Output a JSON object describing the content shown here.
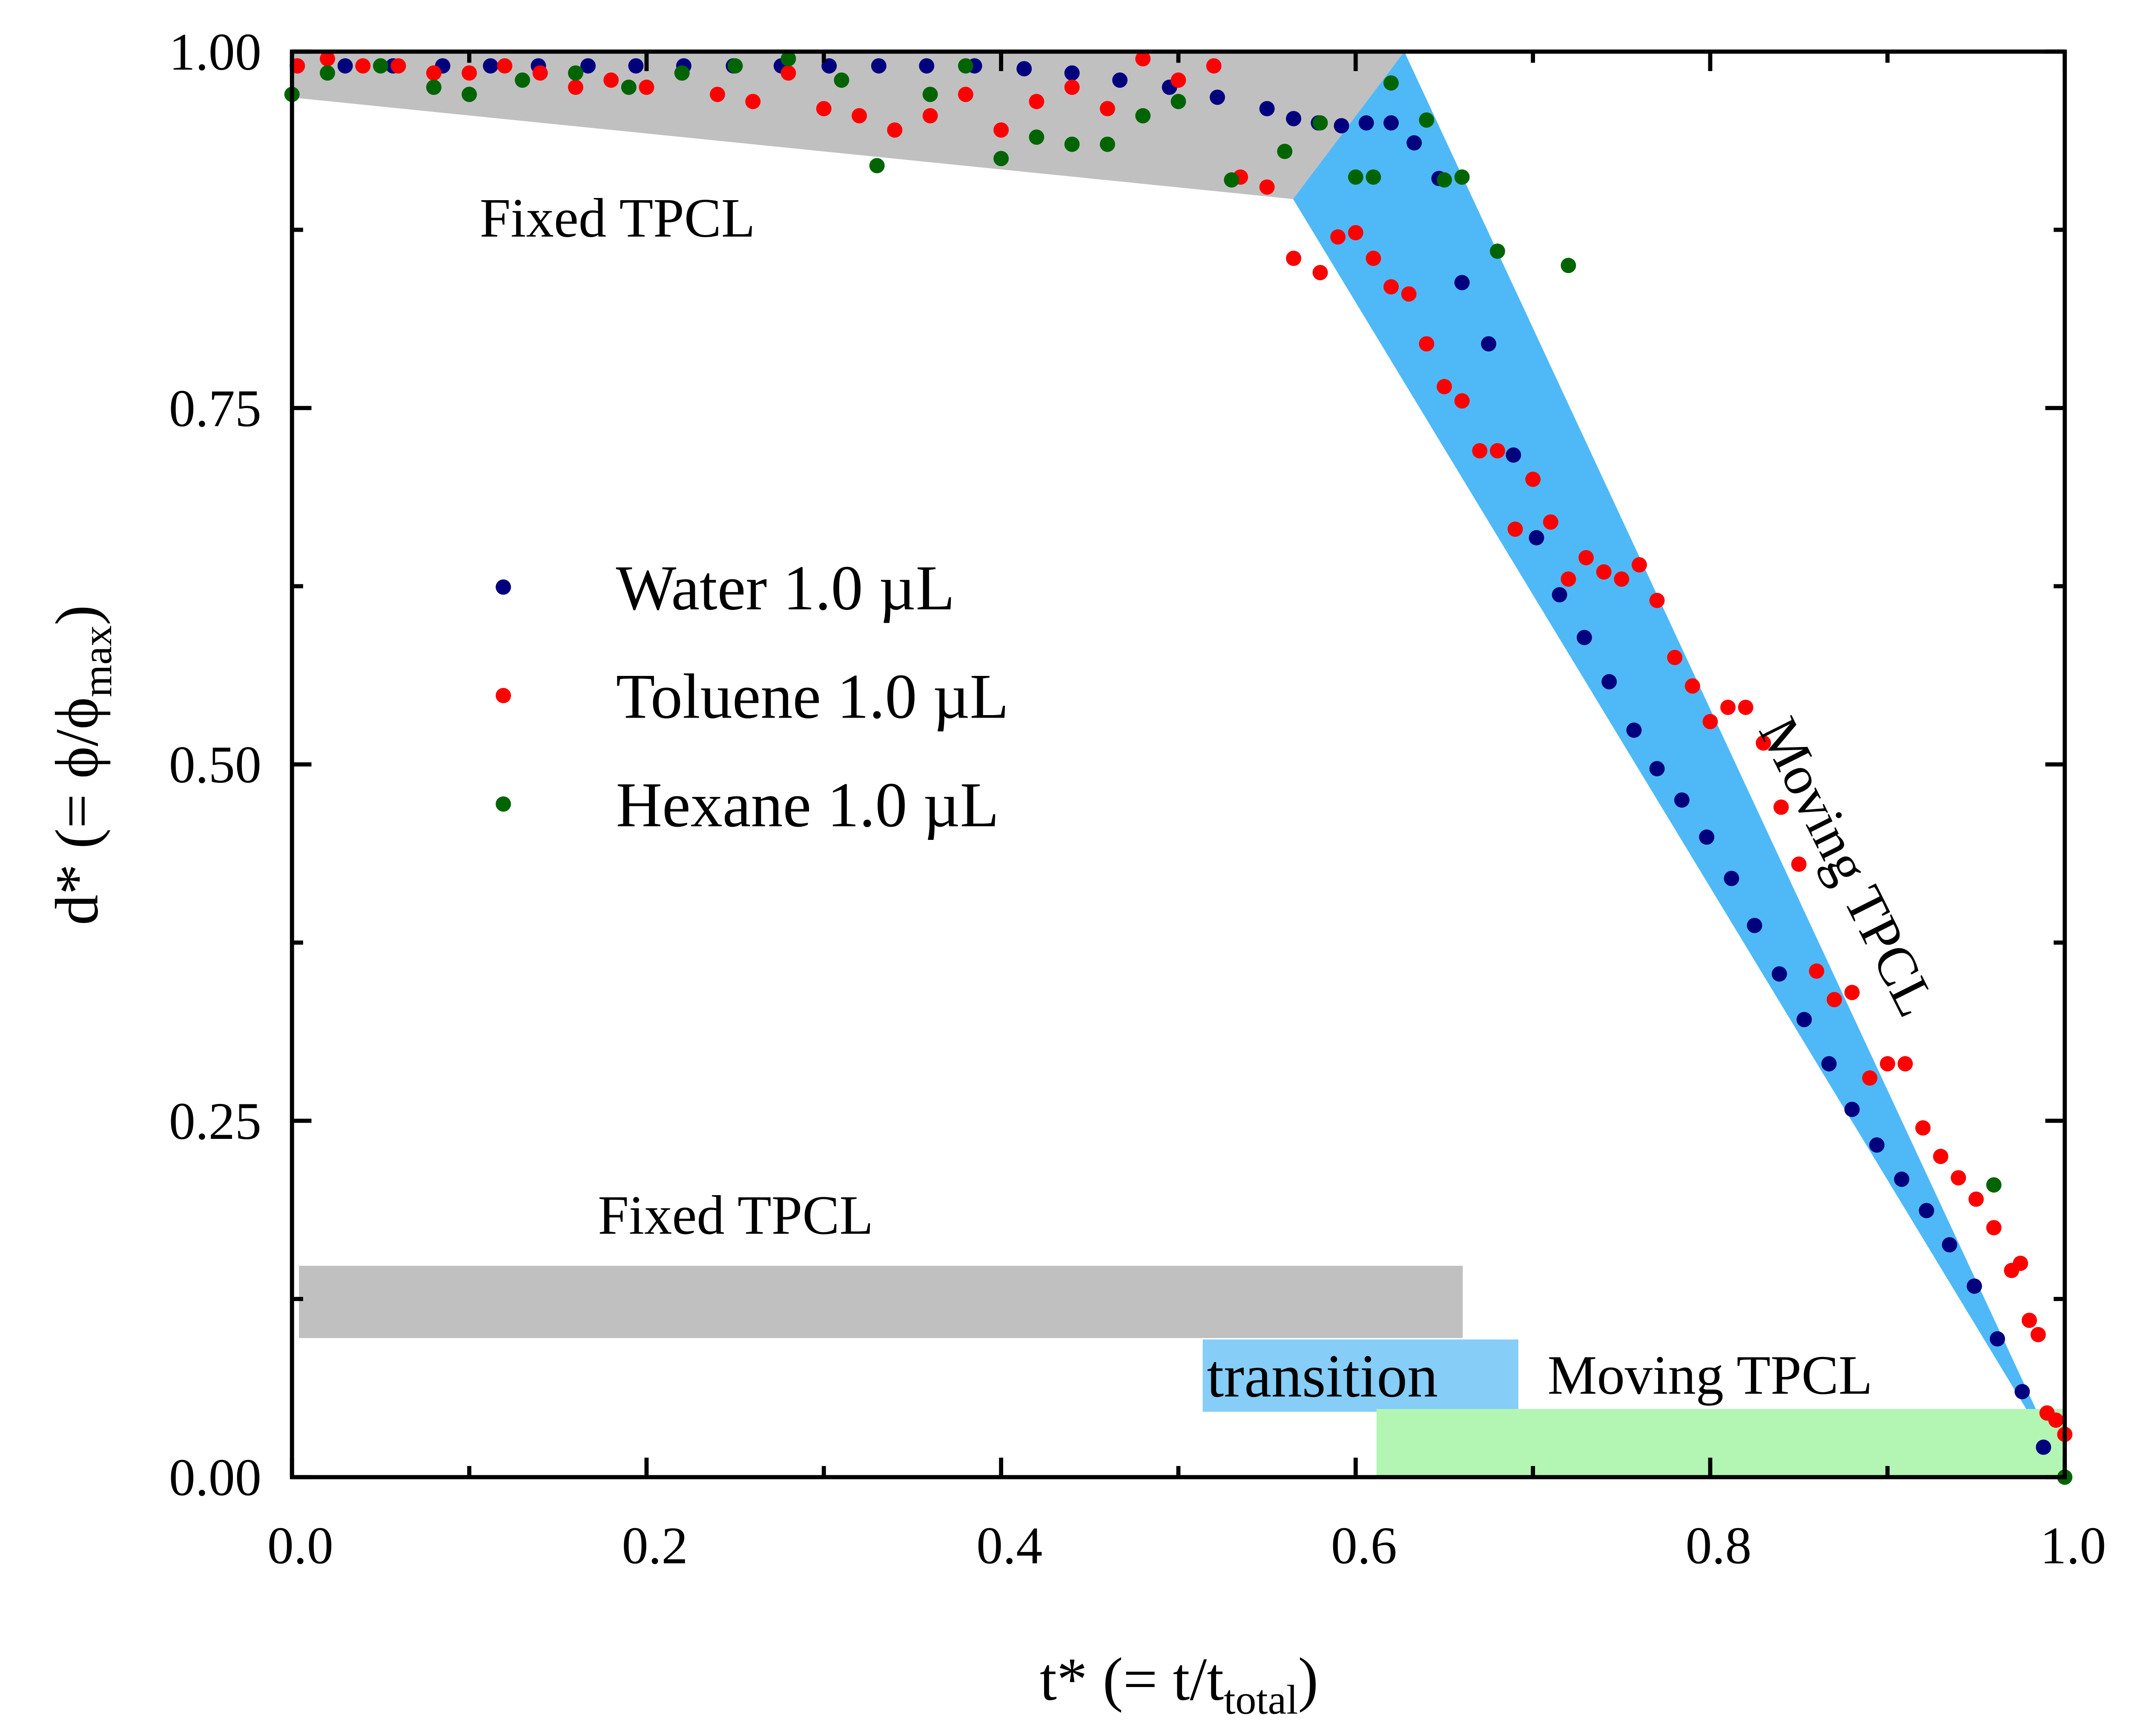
{
  "chart_data": {
    "type": "scatter",
    "x_label": {
      "main": "t* (= t/t",
      "sub": "total",
      "end": ")"
    },
    "y_label": {
      "main": "d* (= ϕ/ϕ",
      "sub": "max",
      "end": ")"
    },
    "xlim": [
      0,
      1
    ],
    "ylim": [
      0,
      1
    ],
    "xticks": [
      {
        "value": 0,
        "label": "0.0"
      },
      0.2,
      0.4,
      0.6,
      0.8,
      {
        "value": 1,
        "label": "1.0"
      }
    ],
    "xminor_ticks": [
      0.1,
      0.3,
      0.5,
      0.7,
      0.9
    ],
    "yticks": [
      {
        "value": 0,
        "label": "0.00"
      },
      0.25,
      {
        "value": 0.5,
        "label": "0.50"
      },
      0.75,
      {
        "value": 1,
        "label": "1.00"
      }
    ],
    "yminor_ticks": [
      0.125,
      0.375,
      0.625,
      0.875
    ],
    "annotations": [
      "Fixed TPCL",
      "Moving TPCL",
      "Fixed TPCL",
      "transition",
      "Moving TPCL"
    ],
    "series": [
      {
        "name": "Water 1.0 µL",
        "color": "#00007f",
        "x": [
          0.003,
          0.03,
          0.057,
          0.085,
          0.112,
          0.139,
          0.167,
          0.194,
          0.221,
          0.249,
          0.276,
          0.303,
          0.331,
          0.358,
          0.385,
          0.413,
          0.44,
          0.467,
          0.495,
          0.522,
          0.55,
          0.565,
          0.579,
          0.592,
          0.606,
          0.62,
          0.633,
          0.647,
          0.66,
          0.675,
          0.689,
          0.702,
          0.715,
          0.729,
          0.743,
          0.757,
          0.77,
          0.784,
          0.798,
          0.812,
          0.825,
          0.839,
          0.853,
          0.867,
          0.88,
          0.894,
          0.908,
          0.922,
          0.935,
          0.949,
          0.962,
          0.976,
          0.988
        ],
        "y": [
          0.99,
          0.99,
          0.99,
          0.99,
          0.99,
          0.99,
          0.99,
          0.99,
          0.99,
          0.99,
          0.99,
          0.99,
          0.99,
          0.99,
          0.99,
          0.988,
          0.985,
          0.98,
          0.975,
          0.968,
          0.96,
          0.953,
          0.95,
          0.948,
          0.95,
          0.95,
          0.936,
          0.911,
          0.838,
          0.795,
          0.717,
          0.659,
          0.619,
          0.589,
          0.558,
          0.524,
          0.497,
          0.475,
          0.449,
          0.42,
          0.387,
          0.353,
          0.321,
          0.29,
          0.258,
          0.233,
          0.209,
          0.187,
          0.163,
          0.134,
          0.097,
          0.06,
          0.021
        ]
      },
      {
        "name": "Toluene 1.0 µL",
        "color": "#ff0000",
        "x": [
          0.003,
          0.02,
          0.04,
          0.06,
          0.08,
          0.1,
          0.12,
          0.14,
          0.16,
          0.18,
          0.2,
          0.22,
          0.24,
          0.26,
          0.28,
          0.3,
          0.32,
          0.34,
          0.36,
          0.38,
          0.4,
          0.42,
          0.44,
          0.46,
          0.48,
          0.5,
          0.52,
          0.535,
          0.55,
          0.565,
          0.58,
          0.59,
          0.6,
          0.61,
          0.62,
          0.63,
          0.64,
          0.65,
          0.66,
          0.67,
          0.68,
          0.69,
          0.7,
          0.71,
          0.72,
          0.73,
          0.74,
          0.75,
          0.76,
          0.77,
          0.78,
          0.79,
          0.8,
          0.81,
          0.82,
          0.83,
          0.84,
          0.85,
          0.86,
          0.87,
          0.88,
          0.89,
          0.9,
          0.91,
          0.92,
          0.93,
          0.94,
          0.95,
          0.96,
          0.97,
          0.975,
          0.98,
          0.985,
          0.99,
          0.995,
          1.0
        ],
        "y": [
          0.99,
          0.995,
          0.99,
          0.99,
          0.985,
          0.985,
          0.99,
          0.985,
          0.975,
          0.98,
          0.975,
          0.985,
          0.97,
          0.965,
          0.985,
          0.96,
          0.955,
          0.945,
          0.955,
          0.97,
          0.945,
          0.965,
          0.975,
          0.96,
          0.995,
          0.98,
          0.99,
          0.912,
          0.905,
          0.855,
          0.845,
          0.87,
          0.873,
          0.855,
          0.835,
          0.83,
          0.795,
          0.765,
          0.755,
          0.72,
          0.72,
          0.665,
          0.7,
          0.67,
          0.63,
          0.645,
          0.635,
          0.63,
          0.64,
          0.615,
          0.575,
          0.555,
          0.53,
          0.54,
          0.54,
          0.515,
          0.47,
          0.43,
          0.355,
          0.335,
          0.34,
          0.28,
          0.29,
          0.29,
          0.245,
          0.225,
          0.21,
          0.195,
          0.175,
          0.145,
          0.15,
          0.11,
          0.1,
          0.045,
          0.04,
          0.03
        ]
      },
      {
        "name": "Hexane 1.0 µL",
        "color": "#006400",
        "x": [
          0.0,
          0.02,
          0.05,
          0.08,
          0.1,
          0.13,
          0.16,
          0.19,
          0.22,
          0.25,
          0.28,
          0.31,
          0.33,
          0.36,
          0.38,
          0.4,
          0.42,
          0.44,
          0.46,
          0.48,
          0.5,
          0.53,
          0.56,
          0.58,
          0.6,
          0.61,
          0.62,
          0.64,
          0.65,
          0.66,
          0.68,
          0.72,
          0.96,
          1.0
        ],
        "y": [
          0.97,
          0.985,
          0.99,
          0.975,
          0.97,
          0.98,
          0.985,
          0.975,
          0.985,
          0.99,
          0.995,
          0.98,
          0.92,
          0.97,
          0.99,
          0.925,
          0.94,
          0.935,
          0.935,
          0.955,
          0.965,
          0.91,
          0.93,
          0.95,
          0.912,
          0.912,
          0.978,
          0.952,
          0.91,
          0.912,
          0.86,
          0.85,
          0.205,
          0.0
        ]
      }
    ]
  }
}
